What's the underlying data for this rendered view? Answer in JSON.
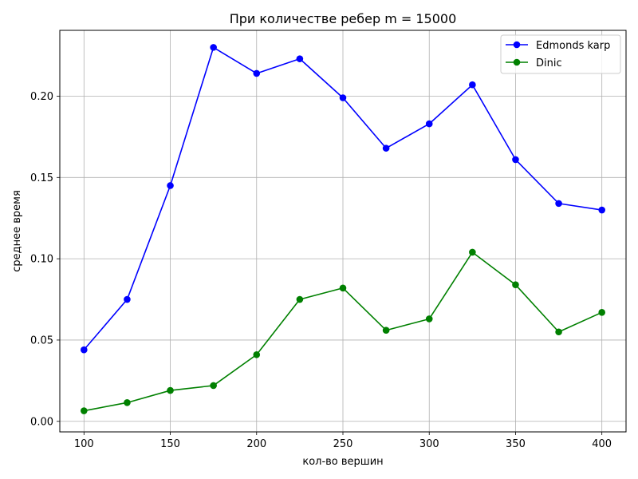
{
  "chart_data": {
    "type": "line",
    "title": "При количестве ребер m = 15000",
    "xlabel": "кол-во вершин",
    "ylabel": "среднее время",
    "x": [
      100,
      125,
      150,
      175,
      200,
      225,
      250,
      275,
      300,
      325,
      350,
      375,
      400
    ],
    "xlim": [
      86,
      414
    ],
    "ylim": [
      -0.0065,
      0.2405
    ],
    "xticks": [
      100,
      150,
      200,
      250,
      300,
      350,
      400
    ],
    "yticks": [
      0.0,
      0.05,
      0.1,
      0.15,
      0.2
    ],
    "ytick_labels": [
      "0.00",
      "0.05",
      "0.10",
      "0.15",
      "0.20"
    ],
    "xtick_labels": [
      "100",
      "150",
      "200",
      "250",
      "300",
      "350",
      "400"
    ],
    "grid": true,
    "legend_position": "top-right",
    "series": [
      {
        "name": "Edmonds karp",
        "color": "#0000ff",
        "marker": "circle",
        "values": [
          0.044,
          0.075,
          0.145,
          0.23,
          0.214,
          0.223,
          0.199,
          0.168,
          0.183,
          0.207,
          0.161,
          0.134,
          0.13
        ]
      },
      {
        "name": "Dinic",
        "color": "#008000",
        "marker": "circle",
        "values": [
          0.0065,
          0.0115,
          0.019,
          0.022,
          0.041,
          0.075,
          0.082,
          0.056,
          0.063,
          0.104,
          0.084,
          0.055,
          0.067
        ]
      }
    ]
  }
}
